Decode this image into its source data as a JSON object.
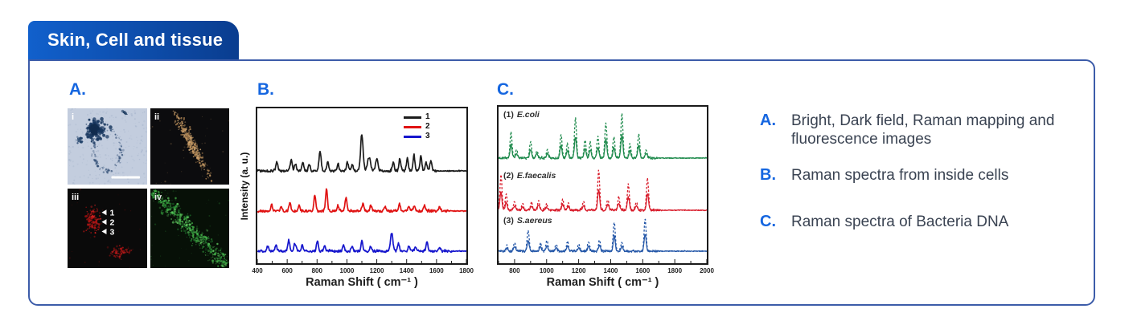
{
  "tab": {
    "label": "Skin, Cell and tissue"
  },
  "panel_a": {
    "label": "A.",
    "images": [
      {
        "key": "i",
        "name": "bright-field-image",
        "label": "i",
        "bg": "#c3cdde",
        "fg": "#17365e",
        "scalebar": true
      },
      {
        "key": "ii",
        "name": "dark-field-image",
        "label": "ii",
        "bg": "#0c0c0e",
        "fg": "#c89a62"
      },
      {
        "key": "iii",
        "name": "raman-mapping-image",
        "label": "iii",
        "bg": "#0a0a0a",
        "fg": "#b51313",
        "markers": [
          "1",
          "2",
          "3"
        ]
      },
      {
        "key": "iv",
        "name": "fluorescence-image",
        "label": "iv",
        "bg": "#071007",
        "fg": "#35a53f"
      }
    ]
  },
  "panel_b": {
    "label": "B."
  },
  "panel_c": {
    "label": "C."
  },
  "caption": [
    {
      "letter": "A.",
      "text": "Bright, Dark field, Raman mapping and fluorescence images"
    },
    {
      "letter": "B.",
      "text": "Raman spectra from inside cells"
    },
    {
      "letter": "C.",
      "text": "Raman spectra of Bacteria DNA"
    }
  ],
  "colors": {
    "accent_blue": "#1566e0",
    "tab_gradient_start": "#1160cc",
    "tab_gradient_end": "#0a3d8f",
    "panel_border": "#3c5ca9",
    "caption_text": "#3a4352"
  },
  "chart_data": [
    {
      "type": "line",
      "title": "",
      "xlabel": "Raman Shift ( cm⁻¹ )",
      "ylabel": "Intensity (a. u.)",
      "xlim": [
        400,
        1800
      ],
      "xticks": [
        400,
        600,
        800,
        1000,
        1200,
        1400,
        1600,
        1800
      ],
      "grid": false,
      "legend_position": "top-right",
      "units_note": "peaks are [raman_shift_cm-1, relative_intensity_au, optional_width]",
      "series": [
        {
          "name": "1",
          "color": "#1c1c1c",
          "flat_after": 1600,
          "peaks": [
            [
              531,
              11
            ],
            [
              627,
              15
            ],
            [
              655,
              9
            ],
            [
              705,
              10
            ],
            [
              748,
              8
            ],
            [
              820,
              24,
              10
            ],
            [
              872,
              11
            ],
            [
              940,
              8
            ],
            [
              1003,
              11
            ],
            [
              1035,
              8
            ],
            [
              1100,
              46,
              12
            ],
            [
              1148,
              17,
              14
            ],
            [
              1200,
              15,
              12
            ],
            [
              1310,
              11
            ],
            [
              1355,
              15
            ],
            [
              1405,
              16
            ],
            [
              1449,
              20
            ],
            [
              1495,
              18
            ],
            [
              1530,
              11
            ],
            [
              1562,
              13
            ]
          ]
        },
        {
          "name": "2",
          "color": "#e01212",
          "flat_after": 1680,
          "peaks": [
            [
              496,
              8
            ],
            [
              560,
              5
            ],
            [
              618,
              11
            ],
            [
              680,
              7
            ],
            [
              785,
              20
            ],
            [
              863,
              28
            ],
            [
              940,
              6
            ],
            [
              994,
              17
            ],
            [
              1108,
              10
            ],
            [
              1160,
              7
            ],
            [
              1255,
              5
            ],
            [
              1352,
              8
            ],
            [
              1415,
              5
            ],
            [
              1450,
              6
            ],
            [
              1519,
              7
            ],
            [
              1620,
              5
            ]
          ]
        },
        {
          "name": "3",
          "color": "#1616cd",
          "flat_after": 1700,
          "peaks": [
            [
              470,
              6
            ],
            [
              525,
              7
            ],
            [
              610,
              14
            ],
            [
              652,
              10
            ],
            [
              700,
              7
            ],
            [
              802,
              12
            ],
            [
              850,
              7
            ],
            [
              977,
              8
            ],
            [
              1035,
              6
            ],
            [
              1100,
              13
            ],
            [
              1160,
              6
            ],
            [
              1300,
              23,
              11
            ],
            [
              1345,
              9
            ],
            [
              1415,
              6
            ],
            [
              1460,
              6
            ],
            [
              1536,
              11
            ],
            [
              1620,
              5
            ]
          ]
        }
      ]
    },
    {
      "type": "line",
      "title": "",
      "xlabel": "Raman Shift ( cm⁻¹ )",
      "ylabel": "",
      "xlim": [
        700,
        2000
      ],
      "xticks": [
        800,
        1000,
        1200,
        1400,
        1600,
        1800,
        2000
      ],
      "grid": false,
      "line_styles": [
        "dashed",
        "solid"
      ],
      "units_note": "each bacterium shown as overlaid dashed (high) and solid (low) traces",
      "series": [
        {
          "name": "(1) E.coli",
          "label_prefix": "(1)",
          "label_name": "E.coli",
          "color": "#1e8a4c",
          "flat_after": 1690,
          "peaks": [
            [
              778,
              32
            ],
            [
              812,
              10
            ],
            [
              900,
              20
            ],
            [
              940,
              10
            ],
            [
              1005,
              10
            ],
            [
              1090,
              30
            ],
            [
              1130,
              18
            ],
            [
              1180,
              50
            ],
            [
              1240,
              22
            ],
            [
              1272,
              20
            ],
            [
              1320,
              26
            ],
            [
              1370,
              44
            ],
            [
              1420,
              26
            ],
            [
              1470,
              56
            ],
            [
              1520,
              18
            ],
            [
              1575,
              30
            ],
            [
              1622,
              10
            ]
          ]
        },
        {
          "name": "(2) E.faecalis",
          "label_prefix": "(2)",
          "label_name": "E.faecalis",
          "color": "#d81b2a",
          "flat_after": 1720,
          "peaks": [
            [
              715,
              44
            ],
            [
              748,
              20
            ],
            [
              800,
              10
            ],
            [
              850,
              8
            ],
            [
              905,
              10
            ],
            [
              950,
              12
            ],
            [
              1000,
              8
            ],
            [
              1100,
              14
            ],
            [
              1135,
              9
            ],
            [
              1230,
              12
            ],
            [
              1325,
              50
            ],
            [
              1382,
              14
            ],
            [
              1450,
              16
            ],
            [
              1510,
              32
            ],
            [
              1560,
              11
            ],
            [
              1630,
              40
            ]
          ]
        },
        {
          "name": "(3) S.aereus",
          "label_prefix": "(3)",
          "label_name": "S.aereus",
          "color": "#2457a8",
          "flat_after": 1700,
          "peaks": [
            [
              752,
              7
            ],
            [
              800,
              11
            ],
            [
              885,
              26
            ],
            [
              962,
              10
            ],
            [
              1002,
              14
            ],
            [
              1060,
              8
            ],
            [
              1130,
              12
            ],
            [
              1200,
              9
            ],
            [
              1262,
              11
            ],
            [
              1330,
              14
            ],
            [
              1422,
              36
            ],
            [
              1470,
              12
            ],
            [
              1615,
              40
            ]
          ]
        }
      ]
    }
  ]
}
